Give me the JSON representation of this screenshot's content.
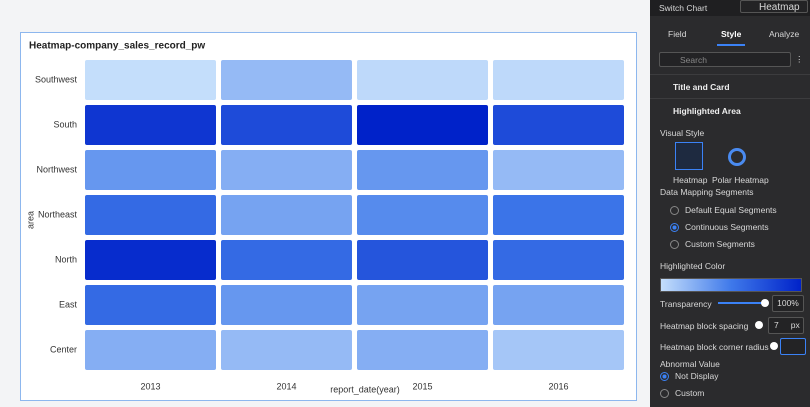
{
  "chart_data": {
    "type": "heatmap",
    "title": "Heatmap-company_sales_record_pw",
    "x_label": "report_date(year)",
    "y_label": "area",
    "categories": [
      "2013",
      "2014",
      "2015",
      "2016"
    ],
    "rows": [
      "Southwest",
      "South",
      "Northwest",
      "Northeast",
      "North",
      "East",
      "Center"
    ],
    "values": [
      [
        10,
        25,
        12,
        12
      ],
      [
        85,
        75,
        95,
        75
      ],
      [
        40,
        30,
        40,
        25
      ],
      [
        60,
        35,
        45,
        55
      ],
      [
        90,
        60,
        70,
        60
      ],
      [
        60,
        40,
        35,
        35
      ],
      [
        30,
        25,
        30,
        20
      ]
    ],
    "colors": [
      "#c4defb",
      "#3f79ea",
      "#0022c9"
    ]
  },
  "panel": {
    "switch_label": "Switch Chart",
    "chart_type": "Heatmap",
    "tabs": [
      "Field",
      "Style",
      "Analyze"
    ],
    "search": "Search",
    "sections": [
      "Title and Card",
      "Highlighted Area"
    ],
    "visual_style": "Visual Style",
    "styles": [
      "Heatmap",
      "Polar Heatmap"
    ],
    "mapping": "Data Mapping Segments",
    "mapping_options": [
      "Default Equal Segments",
      "Continuous Segments",
      "Custom Segments"
    ],
    "highlight_color": "Highlighted Color",
    "transparency": "Transparency",
    "transparency_value": "100%",
    "spacing": "Heatmap block spacing",
    "spacing_value": "7",
    "spacing_unit": "px",
    "radius": "Heatmap block corner radius",
    "abnormal": "Abnormal Value",
    "abnormal_options": [
      "Not Display",
      "Custom"
    ]
  }
}
